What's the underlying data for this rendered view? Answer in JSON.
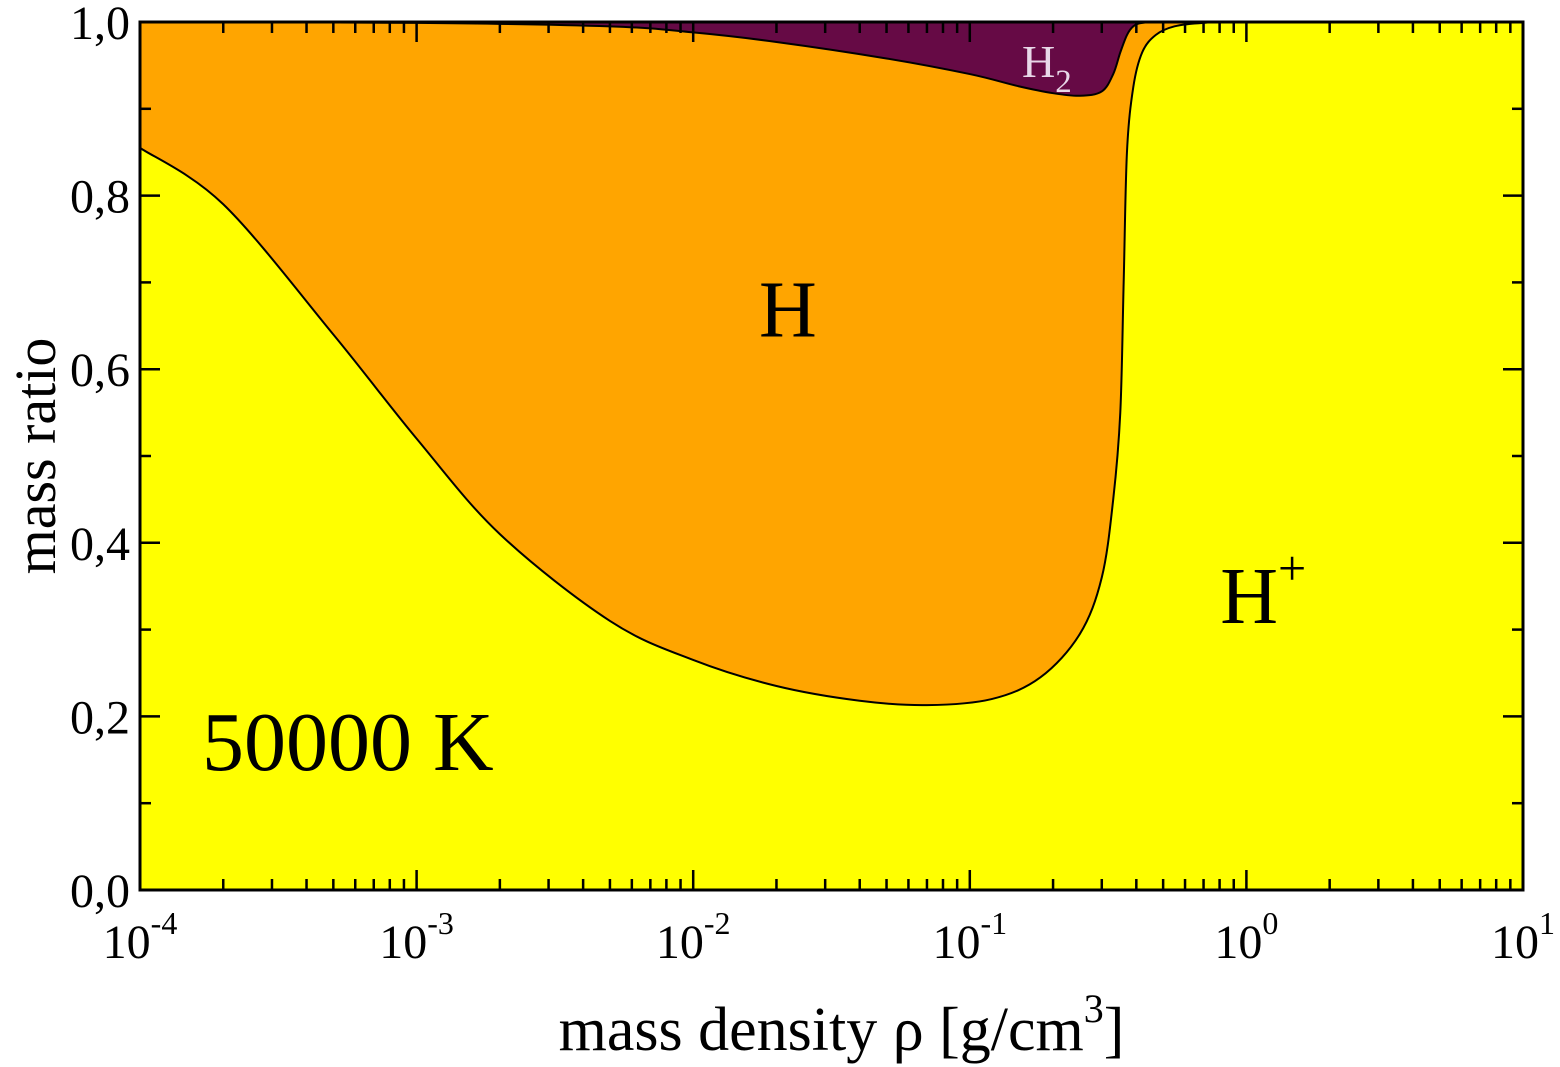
{
  "chart_data": {
    "type": "area",
    "xscale": "log",
    "xlim": [
      0.0001,
      10
    ],
    "ylim": [
      0.0,
      1.0
    ],
    "xlabel": "mass density ρ [g/cm",
    "xlabel_sup": "3",
    "xlabel_tail": "]",
    "ylabel": "mass ratio",
    "annotation": "50000 K",
    "x_ticks": [
      {
        "value": 0.0001,
        "base": "10",
        "exp": "-4"
      },
      {
        "value": 0.001,
        "base": "10",
        "exp": "-3"
      },
      {
        "value": 0.01,
        "base": "10",
        "exp": "-2"
      },
      {
        "value": 0.1,
        "base": "10",
        "exp": "-1"
      },
      {
        "value": 1,
        "base": "10",
        "exp": "0"
      },
      {
        "value": 10,
        "base": "10",
        "exp": "1"
      }
    ],
    "y_ticks": [
      {
        "value": 0.0,
        "label": "0,0"
      },
      {
        "value": 0.2,
        "label": "0,2"
      },
      {
        "value": 0.4,
        "label": "0,4"
      },
      {
        "value": 0.6,
        "label": "0,6"
      },
      {
        "value": 0.8,
        "label": "0,8"
      },
      {
        "value": 1.0,
        "label": "1,0"
      }
    ],
    "region_labels": [
      {
        "text": "H",
        "sub": "2",
        "sup": "",
        "x": 0.19,
        "y": 0.955,
        "color": "#e8d8e8",
        "size": 46
      },
      {
        "text": "H",
        "sub": "",
        "sup": "",
        "x": 0.022,
        "y": 0.67,
        "color": "#000000",
        "size": 80
      },
      {
        "text": "H",
        "sub": "",
        "sup": "+",
        "x": 1.15,
        "y": 0.34,
        "color": "#000000",
        "size": 80
      }
    ],
    "colors": {
      "H_plus": "#ffff00",
      "H": "#ffa500",
      "H2": "#660a45",
      "line": "#000000"
    },
    "series": [
      {
        "name": "H+",
        "x": [
          0.0001,
          0.0002,
          0.0005,
          0.001,
          0.002,
          0.005,
          0.01,
          0.02,
          0.04,
          0.07,
          0.12,
          0.18,
          0.25,
          0.3,
          0.33,
          0.35,
          0.36,
          0.37,
          0.39,
          0.42,
          0.47,
          0.55,
          0.7,
          1,
          10
        ],
        "y": [
          0.855,
          0.79,
          0.64,
          0.52,
          0.41,
          0.31,
          0.265,
          0.235,
          0.218,
          0.213,
          0.22,
          0.245,
          0.295,
          0.36,
          0.45,
          0.55,
          0.7,
          0.85,
          0.925,
          0.965,
          0.985,
          0.995,
          0.999,
          1.0,
          1.0
        ]
      },
      {
        "name": "H",
        "x": [
          0.0001,
          0.001,
          0.005,
          0.01,
          0.02,
          0.05,
          0.1,
          0.15,
          0.2,
          0.25,
          0.3,
          0.33,
          0.35,
          0.37,
          0.39,
          0.42,
          0.5,
          1,
          10
        ],
        "y": [
          1.0,
          0.999,
          0.995,
          0.988,
          0.977,
          0.958,
          0.94,
          0.926,
          0.918,
          0.915,
          0.92,
          0.94,
          0.965,
          0.985,
          0.995,
          0.999,
          1.0,
          1.0,
          1.0
        ]
      },
      {
        "name": "H2",
        "x": [
          0.0001,
          10
        ],
        "y": [
          1.0,
          1.0
        ]
      }
    ]
  }
}
